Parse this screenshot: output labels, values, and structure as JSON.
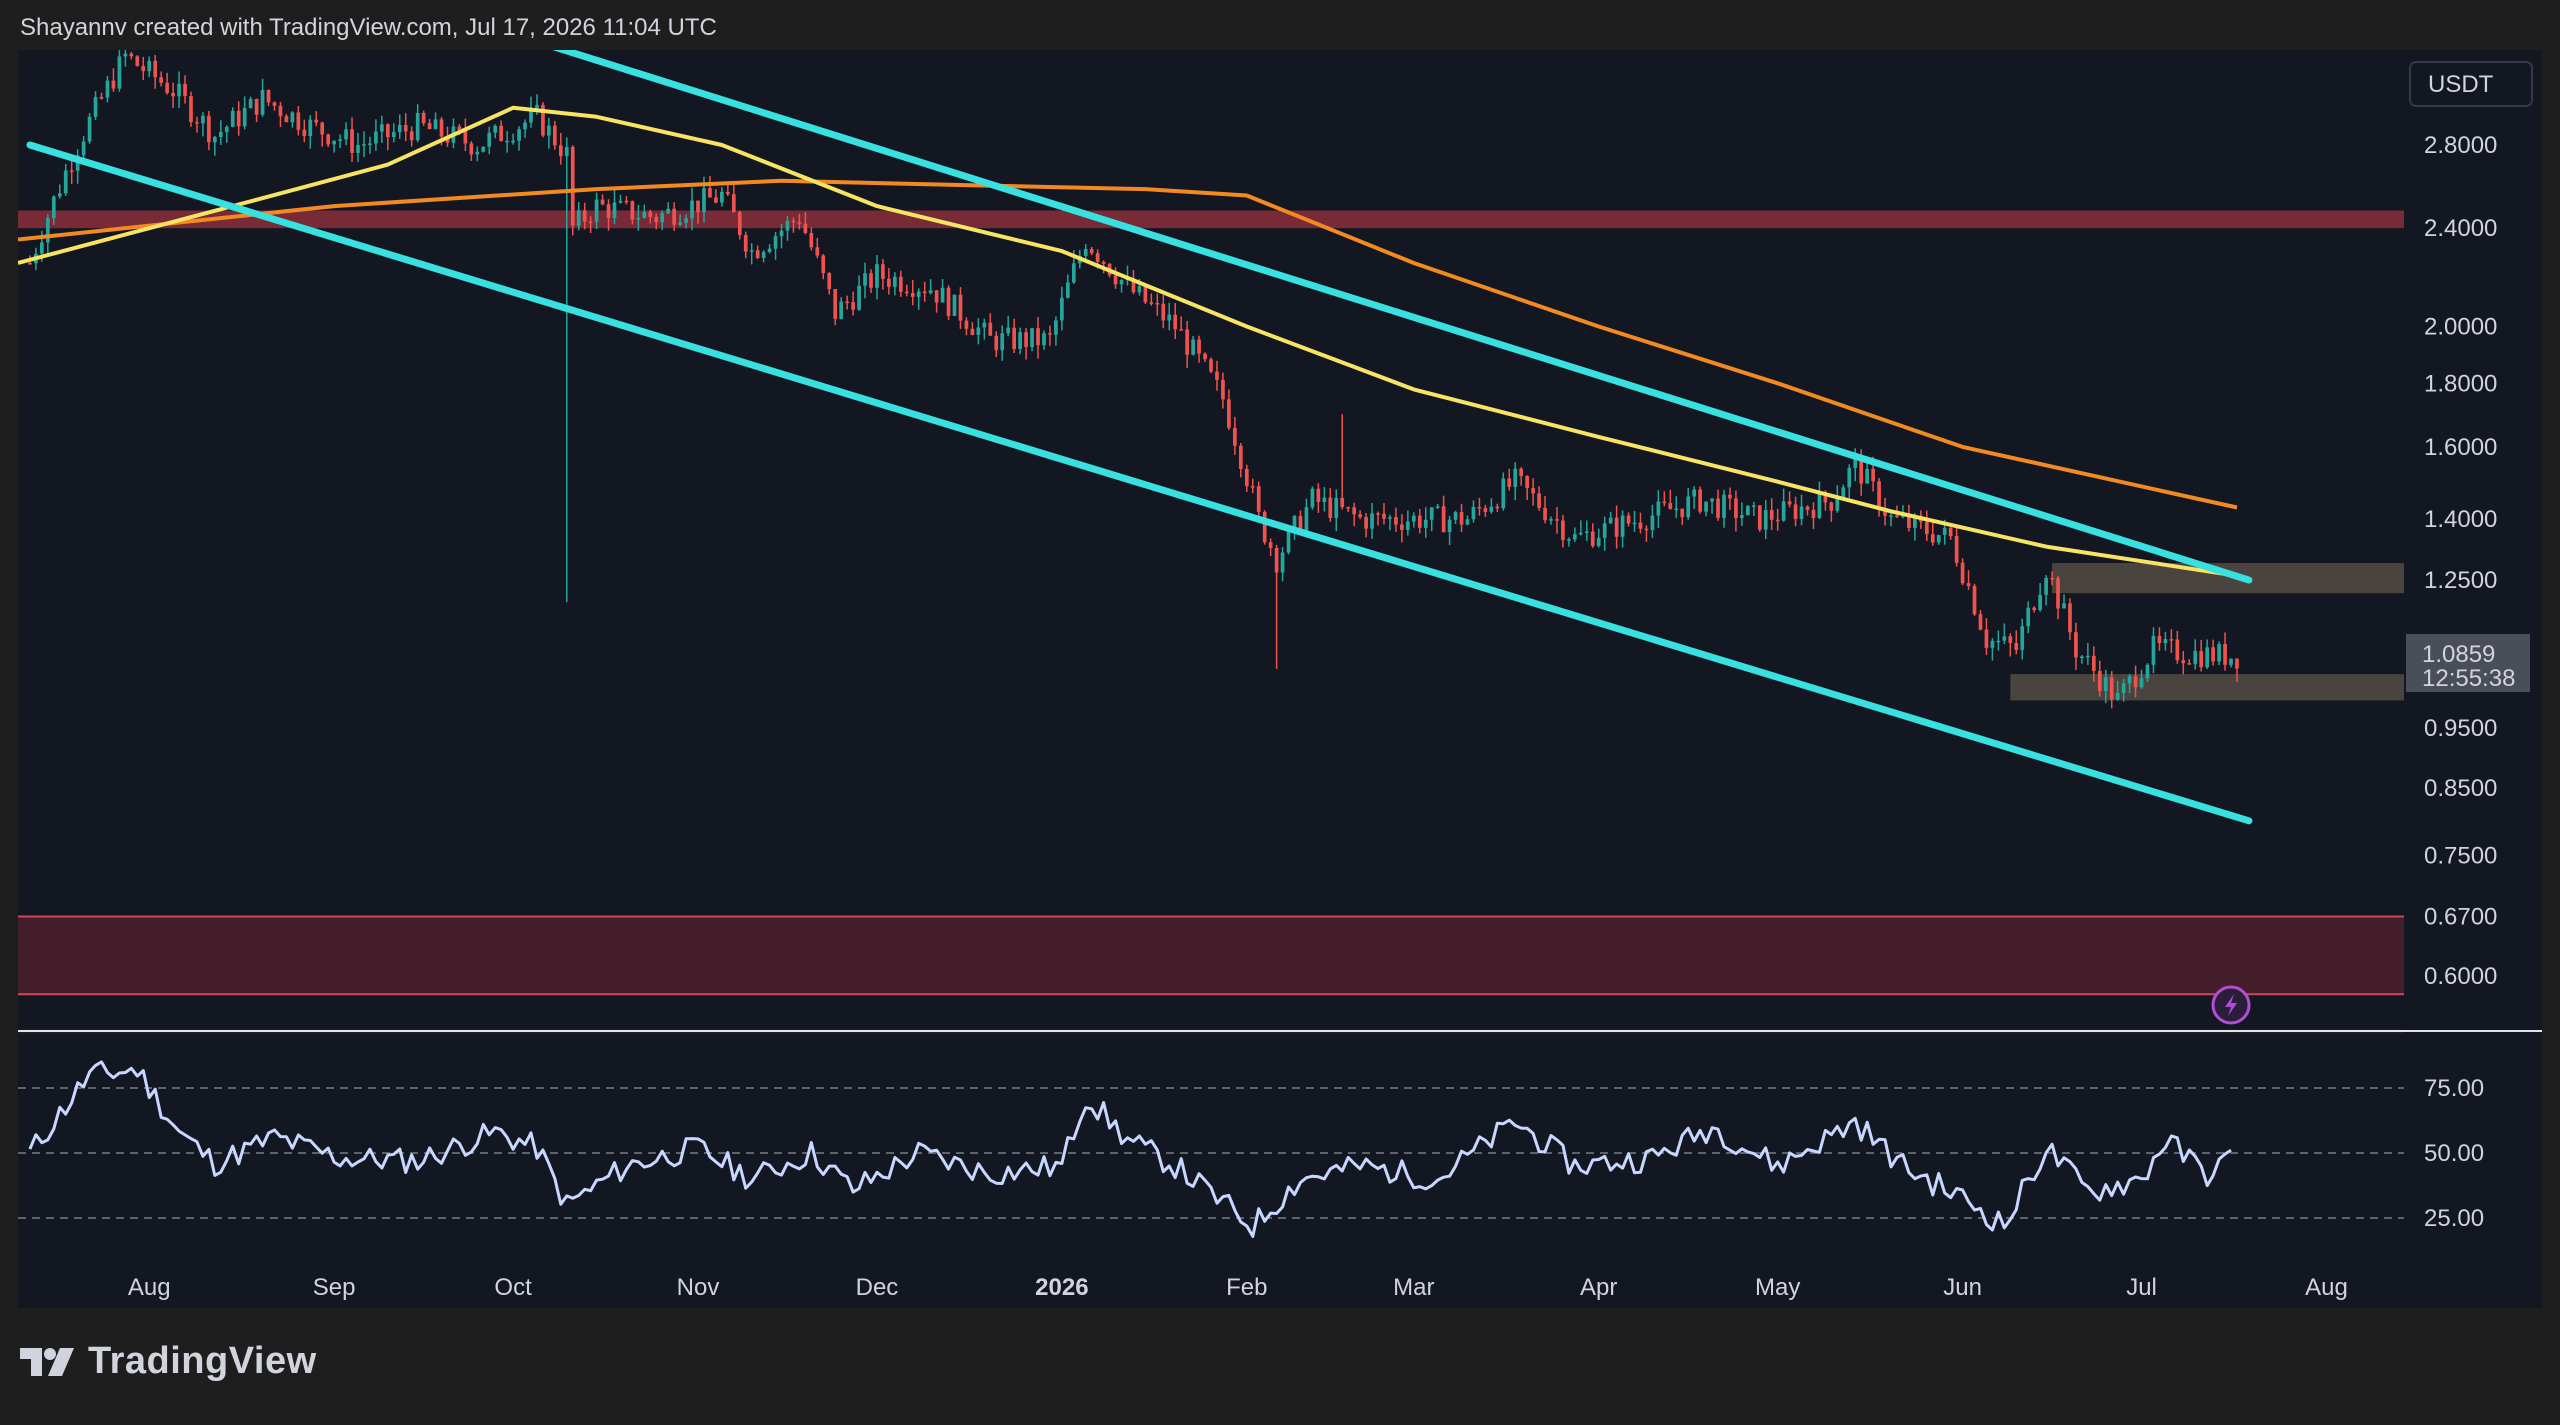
{
  "header": {
    "attribution": "Shayannv created with TradingView.com, Jul 17, 2026 11:04 UTC"
  },
  "footer": {
    "brand": "TradingView"
  },
  "price_panel": {
    "currency_label": "USDT",
    "y_ticks": [
      "2.8000",
      "2.4000",
      "2.0000",
      "1.8000",
      "1.6000",
      "1.4000",
      "1.2500",
      "0.9500",
      "0.8500",
      "0.7500",
      "0.6700",
      "0.6000"
    ],
    "current_price": "1.0859",
    "countdown": "12:55:38",
    "scale": "log"
  },
  "rsi_panel": {
    "y_ticks": [
      "75.00",
      "50.00",
      "25.00"
    ]
  },
  "time_axis": {
    "labels": [
      {
        "text": "Aug",
        "bold": false
      },
      {
        "text": "Sep",
        "bold": false
      },
      {
        "text": "Oct",
        "bold": false
      },
      {
        "text": "Nov",
        "bold": false
      },
      {
        "text": "Dec",
        "bold": false
      },
      {
        "text": "2026",
        "bold": true
      },
      {
        "text": "Feb",
        "bold": false
      },
      {
        "text": "Mar",
        "bold": false
      },
      {
        "text": "Apr",
        "bold": false
      },
      {
        "text": "May",
        "bold": false
      },
      {
        "text": "Jun",
        "bold": false
      },
      {
        "text": "Jul",
        "bold": false
      },
      {
        "text": "Aug",
        "bold": false
      }
    ]
  },
  "colors": {
    "background": "#131722",
    "page": "#1e1e1e",
    "up": "#26a69a",
    "down": "#ef5350",
    "channel": "#39e0e0",
    "ma_fast": "#f7e463",
    "ma_slow": "#f28a21",
    "resistance_zone": "#8b2e3a",
    "demand_zone": "#4a1f2b",
    "box_zone": "#5c5548",
    "rsi": "#c8d7ff"
  },
  "chart_data": {
    "type": "line",
    "price_path": [
      [
        "2025-07-12",
        2.25
      ],
      [
        "2025-07-20",
        2.8
      ],
      [
        "2025-07-28",
        3.3
      ],
      [
        "2025-08-05",
        3.1
      ],
      [
        "2025-08-12",
        2.85
      ],
      [
        "2025-08-20",
        3.05
      ],
      [
        "2025-08-28",
        2.9
      ],
      [
        "2025-09-05",
        2.8
      ],
      [
        "2025-09-15",
        2.9
      ],
      [
        "2025-09-25",
        2.8
      ],
      [
        "2025-10-05",
        2.95
      ],
      [
        "2025-10-10",
        2.75
      ],
      [
        "2025-10-11",
        2.4
      ],
      [
        "2025-10-15",
        2.5
      ],
      [
        "2025-10-25",
        2.45
      ],
      [
        "2025-11-05",
        2.55
      ],
      [
        "2025-11-10",
        2.3
      ],
      [
        "2025-11-18",
        2.45
      ],
      [
        "2025-11-24",
        2.05
      ],
      [
        "2025-12-01",
        2.2
      ],
      [
        "2025-12-10",
        2.15
      ],
      [
        "2025-12-20",
        1.95
      ],
      [
        "2025-12-30",
        1.95
      ],
      [
        "2026-01-05",
        2.35
      ],
      [
        "2026-01-12",
        2.15
      ],
      [
        "2026-01-20",
        2.0
      ],
      [
        "2026-01-28",
        1.75
      ],
      [
        "2026-02-03",
        1.4
      ],
      [
        "2026-02-06",
        1.3
      ],
      [
        "2026-02-12",
        1.45
      ],
      [
        "2026-02-20",
        1.4
      ],
      [
        "2026-03-01",
        1.4
      ],
      [
        "2026-03-10",
        1.4
      ],
      [
        "2026-03-18",
        1.5
      ],
      [
        "2026-03-28",
        1.35
      ],
      [
        "2026-04-08",
        1.4
      ],
      [
        "2026-04-18",
        1.45
      ],
      [
        "2026-04-28",
        1.4
      ],
      [
        "2026-05-10",
        1.45
      ],
      [
        "2026-05-14",
        1.55
      ],
      [
        "2026-05-20",
        1.4
      ],
      [
        "2026-05-30",
        1.35
      ],
      [
        "2026-06-05",
        1.12
      ],
      [
        "2026-06-10",
        1.1
      ],
      [
        "2026-06-15",
        1.28
      ],
      [
        "2026-06-20",
        1.1
      ],
      [
        "2026-06-27",
        1.0
      ],
      [
        "2026-07-03",
        1.1
      ],
      [
        "2026-07-10",
        1.09
      ],
      [
        "2026-07-17",
        1.0859
      ]
    ],
    "ma_fast": [
      [
        "2025-07-10",
        2.25
      ],
      [
        "2025-08-01",
        2.4
      ],
      [
        "2025-08-15",
        2.5
      ],
      [
        "2025-09-10",
        2.7
      ],
      [
        "2025-10-01",
        3.0
      ],
      [
        "2025-10-15",
        2.95
      ],
      [
        "2025-11-05",
        2.8
      ],
      [
        "2025-12-01",
        2.5
      ],
      [
        "2026-01-01",
        2.3
      ],
      [
        "2026-02-01",
        2.0
      ],
      [
        "2026-03-01",
        1.78
      ],
      [
        "2026-04-01",
        1.63
      ],
      [
        "2026-05-01",
        1.5
      ],
      [
        "2026-05-20",
        1.42
      ],
      [
        "2026-06-15",
        1.33
      ],
      [
        "2026-07-17",
        1.26
      ]
    ],
    "ma_slow": [
      [
        "2025-07-10",
        2.35
      ],
      [
        "2025-09-01",
        2.5
      ],
      [
        "2025-10-15",
        2.58
      ],
      [
        "2025-11-15",
        2.62
      ],
      [
        "2025-12-15",
        2.6
      ],
      [
        "2026-01-15",
        2.58
      ],
      [
        "2026-02-01",
        2.55
      ],
      [
        "2026-03-01",
        2.25
      ],
      [
        "2026-04-01",
        2.0
      ],
      [
        "2026-05-01",
        1.8
      ],
      [
        "2026-06-01",
        1.6
      ],
      [
        "2026-07-17",
        1.43
      ]
    ],
    "channel_upper": [
      [
        "2025-09-26",
        3.5
      ],
      [
        "2026-07-19",
        1.25
      ]
    ],
    "channel_lower": [
      [
        "2025-07-12",
        2.8
      ],
      [
        "2026-07-19",
        0.8
      ]
    ],
    "zones": [
      {
        "name": "resistance",
        "from": 2.4,
        "to": 2.48
      },
      {
        "name": "upper-box",
        "from": 1.22,
        "to": 1.29,
        "start": "2026-06-16"
      },
      {
        "name": "lower-box",
        "from": 1.0,
        "to": 1.05,
        "start": "2026-06-09"
      },
      {
        "name": "demand",
        "from": 0.58,
        "to": 0.67
      }
    ],
    "rsi": [
      [
        "2025-07-12",
        50
      ],
      [
        "2025-07-22",
        80
      ],
      [
        "2025-07-30",
        82
      ],
      [
        "2025-08-06",
        58
      ],
      [
        "2025-08-12",
        46
      ],
      [
        "2025-08-22",
        56
      ],
      [
        "2025-09-02",
        48
      ],
      [
        "2025-09-15",
        47
      ],
      [
        "2025-09-28",
        58
      ],
      [
        "2025-10-05",
        52
      ],
      [
        "2025-10-10",
        30
      ],
      [
        "2025-10-20",
        45
      ],
      [
        "2025-11-01",
        52
      ],
      [
        "2025-11-10",
        40
      ],
      [
        "2025-11-20",
        50
      ],
      [
        "2025-11-27",
        36
      ],
      [
        "2025-12-08",
        50
      ],
      [
        "2025-12-20",
        42
      ],
      [
        "2026-01-01",
        45
      ],
      [
        "2026-01-05",
        72
      ],
      [
        "2026-01-12",
        55
      ],
      [
        "2026-01-20",
        45
      ],
      [
        "2026-02-02",
        22
      ],
      [
        "2026-02-10",
        40
      ],
      [
        "2026-02-20",
        45
      ],
      [
        "2026-03-05",
        40
      ],
      [
        "2026-03-18",
        62
      ],
      [
        "2026-03-28",
        45
      ],
      [
        "2026-04-10",
        48
      ],
      [
        "2026-04-20",
        60
      ],
      [
        "2026-05-01",
        45
      ],
      [
        "2026-05-14",
        62
      ],
      [
        "2026-05-22",
        45
      ],
      [
        "2026-06-03",
        30
      ],
      [
        "2026-06-08",
        22
      ],
      [
        "2026-06-15",
        52
      ],
      [
        "2026-06-22",
        35
      ],
      [
        "2026-07-01",
        40
      ],
      [
        "2026-07-05",
        55
      ],
      [
        "2026-07-12",
        42
      ],
      [
        "2026-07-16",
        48
      ]
    ]
  }
}
